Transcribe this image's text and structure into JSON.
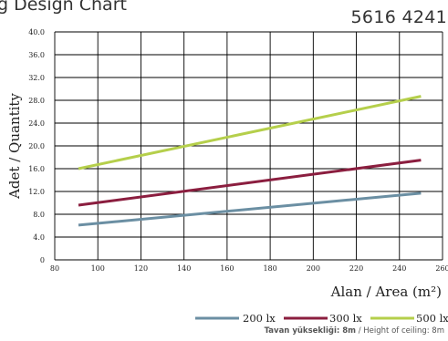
{
  "header": {
    "title": "g Design Chart",
    "code": "5616 4241"
  },
  "footer": {
    "ceiling_label_tr": "Tavan yüksekliği: 8m",
    "ceiling_separator": " / ",
    "ceiling_label_en": "Height of ceiling: 8m"
  },
  "chart_data": {
    "type": "line",
    "xlabel": "Alan / Area (m²)",
    "ylabel": "Adet / Quantity",
    "xlim": [
      80,
      260
    ],
    "ylim": [
      0,
      40
    ],
    "x_ticks": [
      "80",
      "100",
      "120",
      "140",
      "160",
      "180",
      "200",
      "220",
      "240",
      "260"
    ],
    "y_ticks": [
      "0",
      "4.0",
      "8.0",
      "12.0",
      "16.0",
      "20.0",
      "24.0",
      "28.0",
      "32.0",
      "36.0",
      "40.0"
    ],
    "grid": true,
    "legend_position": "bottom-right",
    "series": [
      {
        "name": "200 lx",
        "color": "#6b8fa3",
        "x": [
          91,
          250
        ],
        "values": [
          6.1,
          11.7
        ]
      },
      {
        "name": "300 lx",
        "color": "#8b1e3f",
        "x": [
          91,
          250
        ],
        "values": [
          9.6,
          17.5
        ]
      },
      {
        "name": "500 lx",
        "color": "#b5cf4b",
        "x": [
          91,
          250
        ],
        "values": [
          16.0,
          28.7
        ]
      }
    ]
  }
}
